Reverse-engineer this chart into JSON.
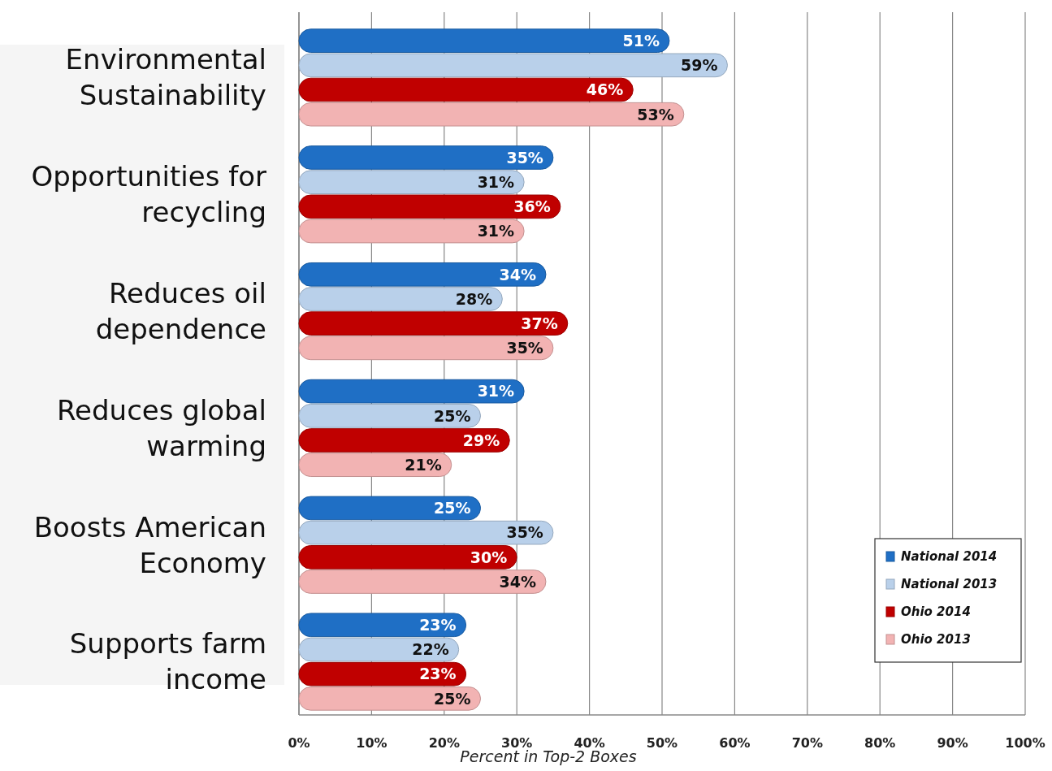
{
  "chart_data": {
    "type": "bar",
    "orientation": "horizontal",
    "xlabel": "Percent in Top-2 Boxes",
    "categories": [
      "Environmental Sustainability",
      "Opportunities for recycling",
      "Reduces oil dependence",
      "Reduces global warming",
      "Boosts American Economy",
      "Supports farm income"
    ],
    "series": [
      {
        "name": "National 2014",
        "color": "#1f6fc5",
        "values": [
          51,
          35,
          34,
          31,
          25,
          23
        ],
        "value_labels": [
          "51%",
          "35%",
          "34%",
          "31%",
          "25%",
          "23%"
        ]
      },
      {
        "name": "National 2013",
        "color": "#b9d0ea",
        "values": [
          59,
          31,
          28,
          25,
          35,
          22
        ],
        "value_labels": [
          "59%",
          "31%",
          "28%",
          "25%",
          "35%",
          "22%"
        ]
      },
      {
        "name": "Ohio 2014",
        "color": "#c00000",
        "values": [
          46,
          36,
          37,
          29,
          30,
          23
        ],
        "value_labels": [
          "46%",
          "36%",
          "37%",
          "29%",
          "30%",
          "23%"
        ]
      },
      {
        "name": "Ohio 2013",
        "color": "#f2b3b3",
        "values": [
          53,
          31,
          35,
          21,
          34,
          25
        ],
        "value_labels": [
          "53%",
          "31%",
          "35%",
          "21%",
          "34%",
          "25%"
        ]
      }
    ],
    "xlim": [
      0,
      100
    ],
    "xticks": [
      {
        "value": 0,
        "label": "0%"
      },
      {
        "value": 10,
        "label": "10%"
      },
      {
        "value": 20,
        "label": "20%"
      },
      {
        "value": 30,
        "label": "30%"
      },
      {
        "value": 40,
        "label": "40%"
      },
      {
        "value": 50,
        "label": "50%"
      },
      {
        "value": 60,
        "label": "60%"
      },
      {
        "value": 70,
        "label": "70%"
      },
      {
        "value": 80,
        "label": "80%"
      },
      {
        "value": 90,
        "label": "90%"
      },
      {
        "value": 100,
        "label": "100%"
      }
    ],
    "grid": "x",
    "legend": "bottom right"
  }
}
